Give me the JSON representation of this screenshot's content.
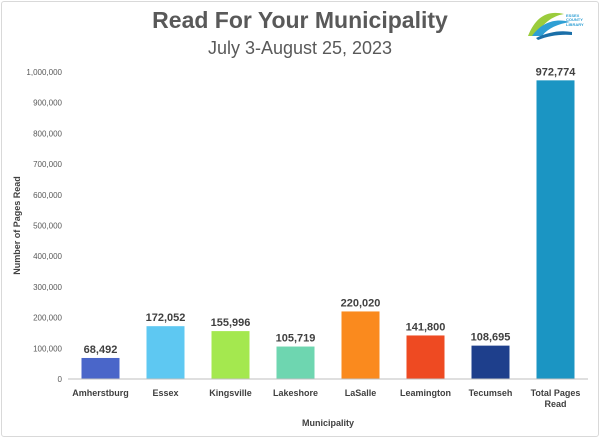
{
  "title": "Read For Your Municipality",
  "subtitle": "July 3-August 25, 2023",
  "logo": {
    "text_lines": [
      "ESSEX",
      "COUNTY",
      "LIBRARY"
    ]
  },
  "chart_data": {
    "type": "bar",
    "title": "Read For Your Municipality",
    "subtitle": "July 3-August 25, 2023",
    "xlabel": "Municipality",
    "ylabel": "Number of Pages Read",
    "ylim": [
      0,
      1000000
    ],
    "ytick_step": 100000,
    "yticks": [
      "0",
      "100,000",
      "200,000",
      "300,000",
      "400,000",
      "500,000",
      "600,000",
      "700,000",
      "800,000",
      "900,000",
      "1,000,000"
    ],
    "grid": false,
    "categories": [
      "Amherstburg",
      "Essex",
      "Kingsville",
      "Lakeshore",
      "LaSalle",
      "Leamington",
      "Tecumseh",
      "Total Pages Read"
    ],
    "category_lines": [
      [
        "Amherstburg"
      ],
      [
        "Essex"
      ],
      [
        "Kingsville"
      ],
      [
        "Lakeshore"
      ],
      [
        "LaSalle"
      ],
      [
        "Leamington"
      ],
      [
        "Tecumseh"
      ],
      [
        "Total Pages",
        "Read"
      ]
    ],
    "values": [
      68492,
      172052,
      155996,
      105719,
      220020,
      141800,
      108695,
      972774
    ],
    "data_labels": [
      "68,492",
      "172,052",
      "155,996",
      "105,719",
      "220,020",
      "141,800",
      "108,695",
      "972,774"
    ],
    "colors": [
      "#4a66c9",
      "#5ec8f2",
      "#a4e84f",
      "#6ed6b0",
      "#fa8a1e",
      "#ee4a22",
      "#1e3f8c",
      "#1b95c3"
    ]
  }
}
